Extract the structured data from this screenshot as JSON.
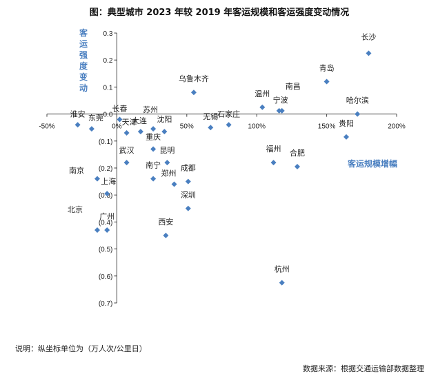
{
  "chart_data": {
    "type": "scatter",
    "title": "图：典型城市 2023 年较 2019 年客运规模和客运强度变动情况",
    "xlabel": "客运规模增幅",
    "ylabel": "客运强度变动",
    "xlim": [
      -0.5,
      2.0
    ],
    "ylim": [
      -0.7,
      0.3
    ],
    "x_ticks": [
      "-50%",
      "0%",
      "50%",
      "100%",
      "150%",
      "200%"
    ],
    "y_ticks": [
      "0.3",
      "0.2",
      "0.1",
      "0.0",
      "(0.1)",
      "(0.2)",
      "(0.3)",
      "(0.4)",
      "(0.5)",
      "(0.6)",
      "(0.7)"
    ],
    "marker_color": "#4a7fc0",
    "points": [
      {
        "label": "长沙",
        "x": 1.8,
        "y": 0.225
      },
      {
        "label": "青岛",
        "x": 1.5,
        "y": 0.12
      },
      {
        "label": "哈尔滨",
        "x": 1.72,
        "y": 0.0
      },
      {
        "label": "贵阳",
        "x": 1.64,
        "y": -0.085
      },
      {
        "label": "南昌",
        "x": 1.18,
        "y": 0.012
      },
      {
        "label": "宁波",
        "x": 1.16,
        "y": 0.012
      },
      {
        "label": "温州",
        "x": 1.04,
        "y": 0.025
      },
      {
        "label": "福州",
        "x": 1.12,
        "y": -0.18
      },
      {
        "label": "合肥",
        "x": 1.29,
        "y": -0.195
      },
      {
        "label": "杭州",
        "x": 1.18,
        "y": -0.625
      },
      {
        "label": "乌鲁木齐",
        "x": 0.55,
        "y": 0.08
      },
      {
        "label": "石家庄",
        "x": 0.8,
        "y": -0.04
      },
      {
        "label": "无锡",
        "x": 0.67,
        "y": -0.05
      },
      {
        "label": "淮安",
        "x": -0.28,
        "y": -0.04
      },
      {
        "label": "东莞",
        "x": -0.18,
        "y": -0.055
      },
      {
        "label": "长春",
        "x": 0.02,
        "y": -0.02
      },
      {
        "label": "天津",
        "x": 0.07,
        "y": -0.07
      },
      {
        "label": "大连",
        "x": 0.17,
        "y": -0.065
      },
      {
        "label": "苏州",
        "x": 0.26,
        "y": -0.055
      },
      {
        "label": "沈阳",
        "x": 0.34,
        "y": -0.065
      },
      {
        "label": "重庆",
        "x": 0.26,
        "y": -0.13
      },
      {
        "label": "昆明",
        "x": 0.36,
        "y": -0.18
      },
      {
        "label": "武汉",
        "x": 0.07,
        "y": -0.18
      },
      {
        "label": "南宁",
        "x": 0.26,
        "y": -0.24
      },
      {
        "label": "郑州",
        "x": 0.41,
        "y": -0.26
      },
      {
        "label": "成都",
        "x": 0.51,
        "y": -0.25
      },
      {
        "label": "深圳",
        "x": 0.51,
        "y": -0.35
      },
      {
        "label": "南京",
        "x": -0.14,
        "y": -0.24
      },
      {
        "label": "上海",
        "x": -0.07,
        "y": -0.295
      },
      {
        "label": "北京",
        "x": -0.14,
        "y": -0.43
      },
      {
        "label": "广州",
        "x": -0.07,
        "y": -0.43
      },
      {
        "label": "西安",
        "x": 0.35,
        "y": -0.45
      }
    ]
  },
  "footer": {
    "note": "说明：纵坐标单位为（万人次/公里日）",
    "source": "数据来源：根据交通运输部数据整理"
  }
}
